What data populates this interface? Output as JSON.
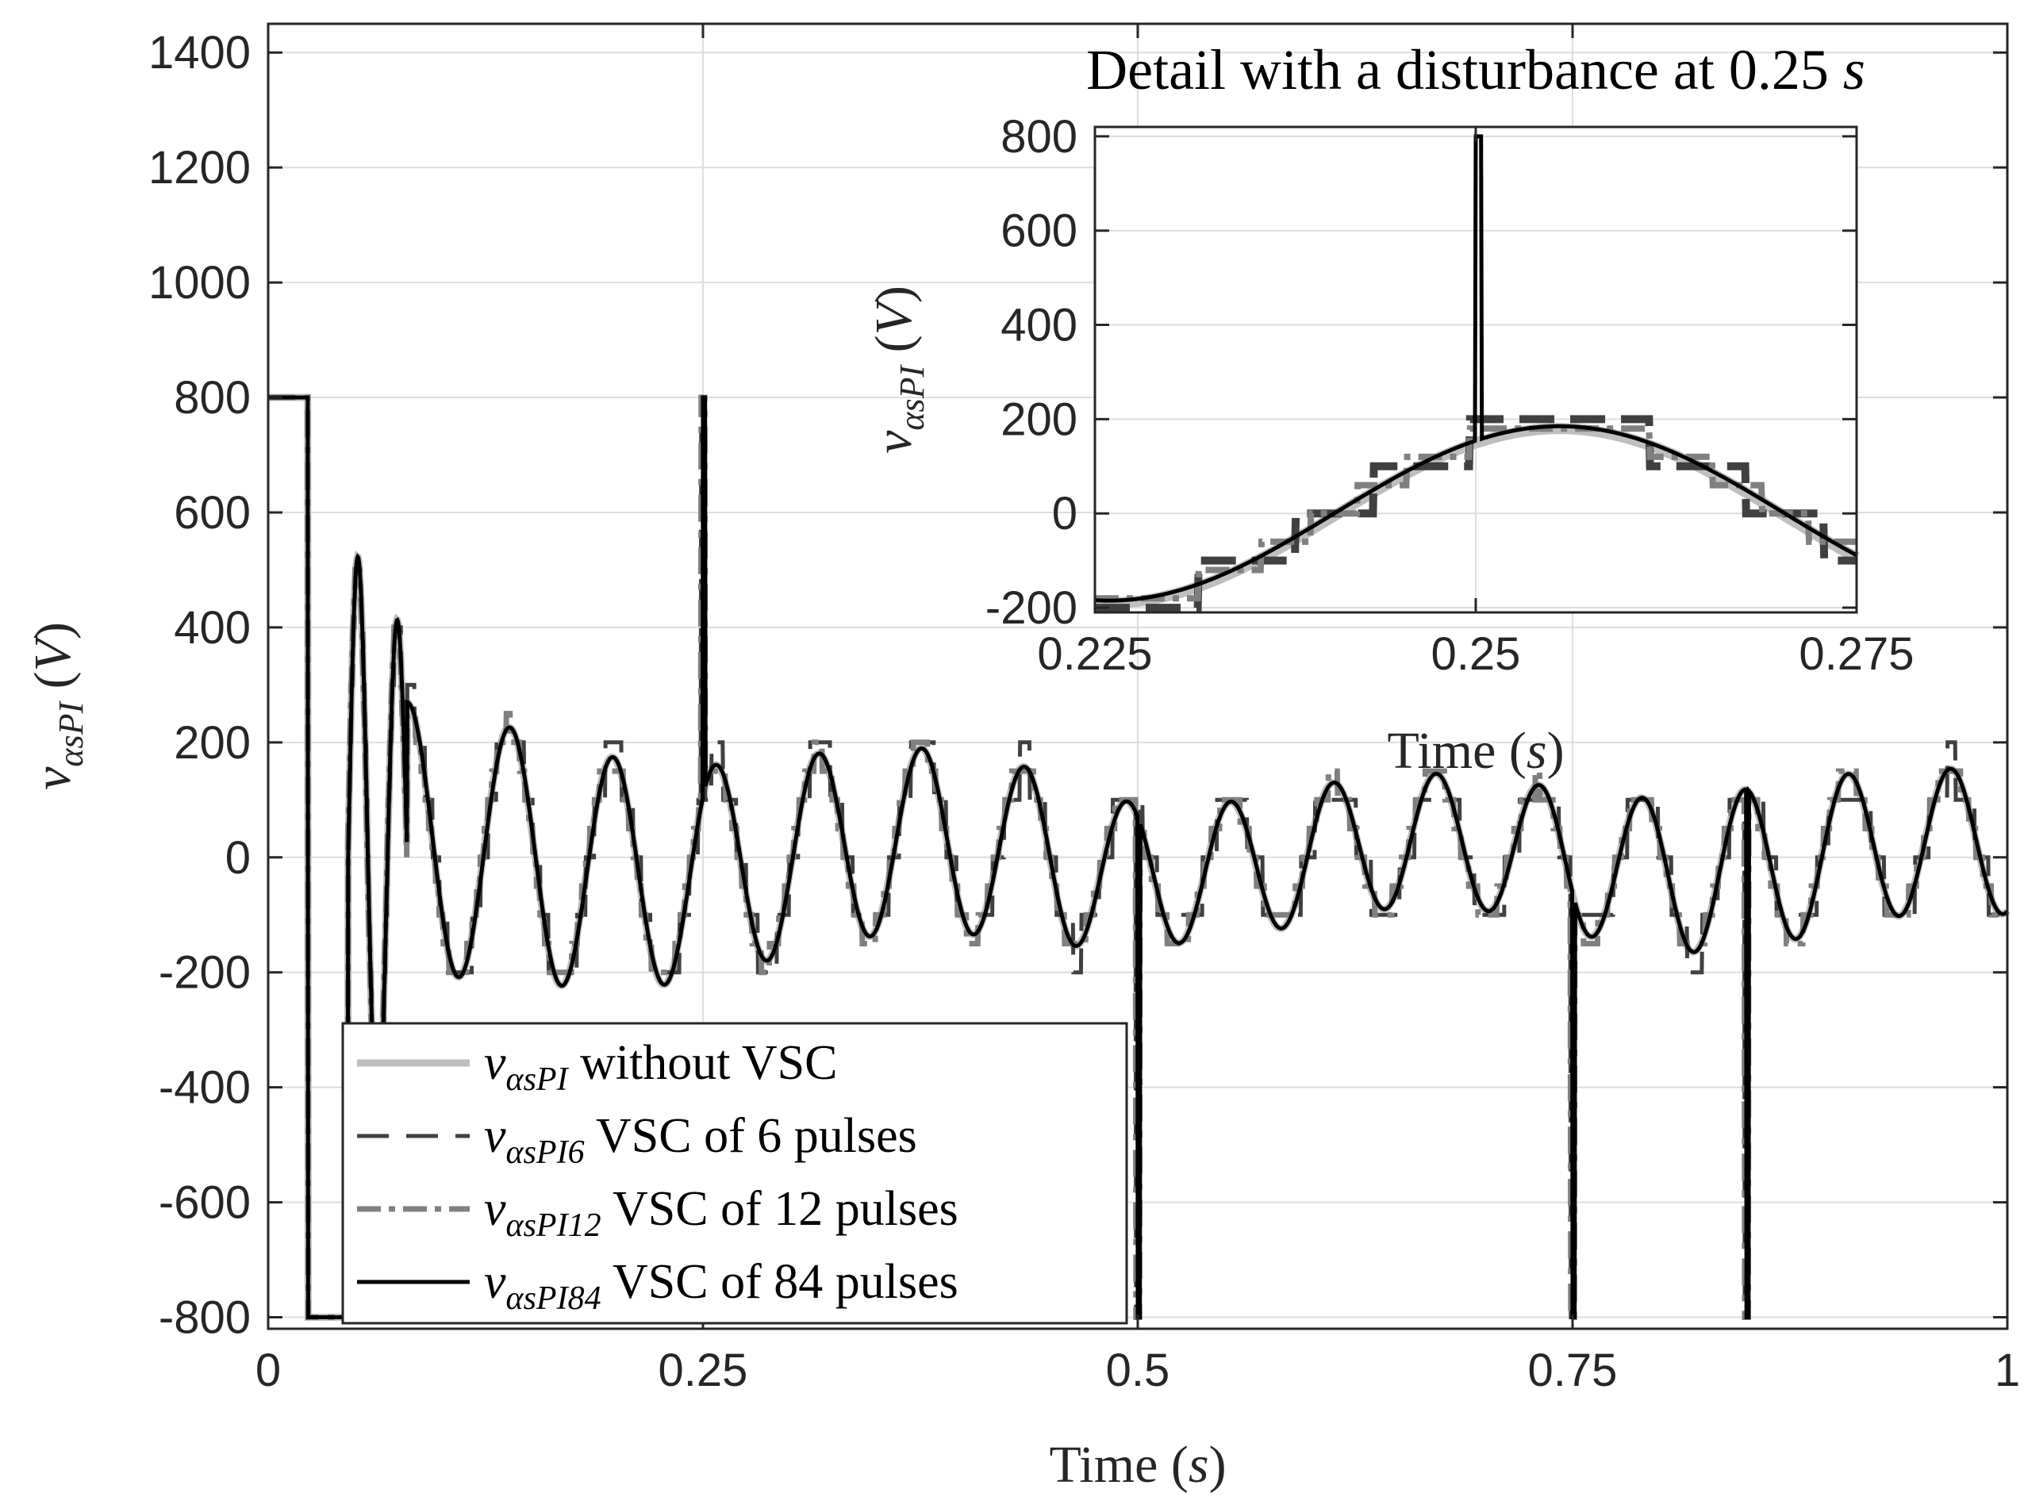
{
  "chart_data": [
    {
      "id": "main",
      "type": "line",
      "xlabel": {
        "main": "Time",
        "unit": "s"
      },
      "ylabel": {
        "symbol": "v",
        "subscript": "αsPI",
        "unit": "V"
      },
      "xlim": [
        0,
        1
      ],
      "ylim": [
        -820,
        1450
      ],
      "xticks": [
        0,
        0.25,
        0.5,
        0.75,
        1
      ],
      "xtick_labels": [
        "0",
        "0.25",
        "0.5",
        "0.75",
        "1"
      ],
      "yticks": [
        -800,
        -600,
        -400,
        -200,
        0,
        200,
        400,
        600,
        800,
        1000,
        1200,
        1400
      ],
      "ytick_labels": [
        "-800",
        "-600",
        "-400",
        "-200",
        "0",
        "200",
        "400",
        "600",
        "800",
        "1000",
        "1200",
        "1400"
      ],
      "grid": true,
      "legend": {
        "position": "bottom-left",
        "entries": [
          {
            "symbol": "v",
            "subscript": "αsPI",
            "text": "without VSC",
            "color": "#bfbfbf",
            "style": "solid"
          },
          {
            "symbol": "v",
            "subscript": "αsPI6",
            "text": "VSC of 6 pulses",
            "color": "#404040",
            "style": "dashed"
          },
          {
            "symbol": "v",
            "subscript": "αsPI12",
            "text": "VSC of 12 pulses",
            "color": "#808080",
            "style": "dashdot"
          },
          {
            "symbol": "v",
            "subscript": "αsPI84",
            "text": "VSC of 84 pulses",
            "color": "#000000",
            "style": "solid"
          }
        ]
      },
      "signal": {
        "frequency_hz": 16.9,
        "saturation_high": 800,
        "saturation_low": -800,
        "saturation_interval": [
          0,
          0.023
        ],
        "amplitude_envelope": [
          [
            0.08,
            240
          ],
          [
            0.2,
            200
          ],
          [
            0.3,
            170
          ],
          [
            0.45,
            150
          ],
          [
            0.5,
            120
          ],
          [
            0.7,
            115
          ],
          [
            0.85,
            140
          ],
          [
            1.0,
            120
          ]
        ],
        "disturbances": [
          {
            "t": 0.25,
            "peak": 800
          },
          {
            "t": 0.5,
            "peak": -800
          },
          {
            "t": 0.75,
            "peak": -800
          },
          {
            "t": 0.85,
            "peak": -800
          }
        ]
      }
    },
    {
      "id": "inset",
      "type": "line",
      "title": {
        "text": "Detail with a disturbance at 0.25",
        "unit": "s"
      },
      "xlabel": {
        "main": "Time",
        "unit": "s"
      },
      "ylabel": {
        "symbol": "v",
        "subscript": "αsPI",
        "unit": "V"
      },
      "xlim": [
        0.225,
        0.275
      ],
      "ylim": [
        -210,
        820
      ],
      "xticks": [
        0.225,
        0.25,
        0.275
      ],
      "xtick_labels": [
        "0.225",
        "0.25",
        "0.275"
      ],
      "yticks": [
        -200,
        0,
        200,
        400,
        600,
        800
      ],
      "ytick_labels": [
        "-200",
        "0",
        "200",
        "400",
        "600",
        "800"
      ],
      "grid": true,
      "spike": {
        "t": 0.25,
        "peak": 800
      }
    }
  ]
}
